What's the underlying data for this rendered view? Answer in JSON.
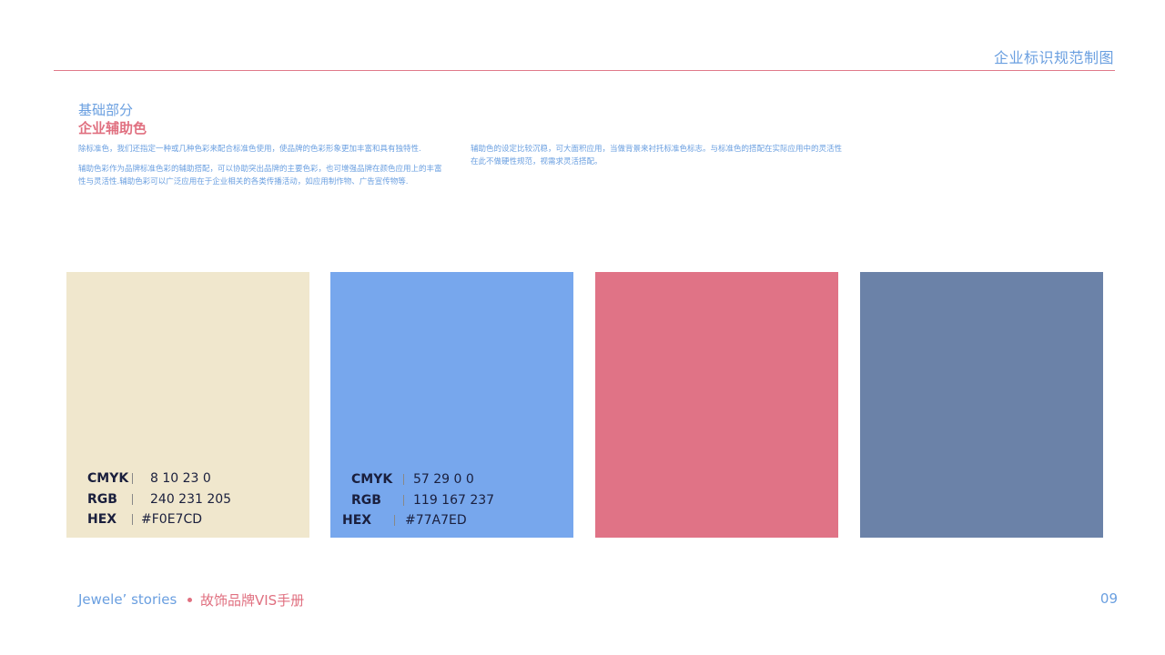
{
  "header": {
    "title": "企业标识规范制图"
  },
  "section": {
    "label": "基础部分",
    "title": "企业辅助色"
  },
  "description": {
    "left_p1": "除标准色，我们还指定一种或几种色彩来配合标准色使用，使品牌的色彩形象更加丰富和具有独特性.",
    "left_p2": "辅助色彩作为品牌标准色彩的辅助搭配，可以协助突出品牌的主要色彩，也可增强品牌在颜色应用上的丰富性与灵活性.辅助色彩可以广泛应用在于企业相关的各类传播活动，如应用制作物、广告宣传物等.",
    "right_p1": "辅助色的设定比较沉稳，可大面积应用，当做背景来衬托标准色标志。与标准色的搭配在实际应用中的灵活性在此不做硬性规范，视需求灵活搭配。"
  },
  "swatches": [
    {
      "color": "#F0E7CD",
      "cmyk_label": "CMYK",
      "cmyk": "8 10 23 0",
      "rgb_label": "RGB",
      "rgb": "240 231 205",
      "hex_label": "HEX",
      "hex": "#F0E7CD"
    },
    {
      "color": "#77A7ED",
      "cmyk_label": "CMYK",
      "cmyk": "57 29 0 0",
      "rgb_label": "RGB",
      "rgb": "119 167 237",
      "hex_label": "HEX",
      "hex": "#77A7ED"
    },
    {
      "color": "#E07386"
    },
    {
      "color": "#6B82A8"
    }
  ],
  "footer": {
    "brand": "Jewele’ stories",
    "subtitle": "故饰品牌VIS手册",
    "page_number": "09"
  },
  "colors": {
    "accent_blue": "#6a9fe0",
    "accent_pink": "#e07080",
    "text_dark": "#1a1f3d"
  }
}
